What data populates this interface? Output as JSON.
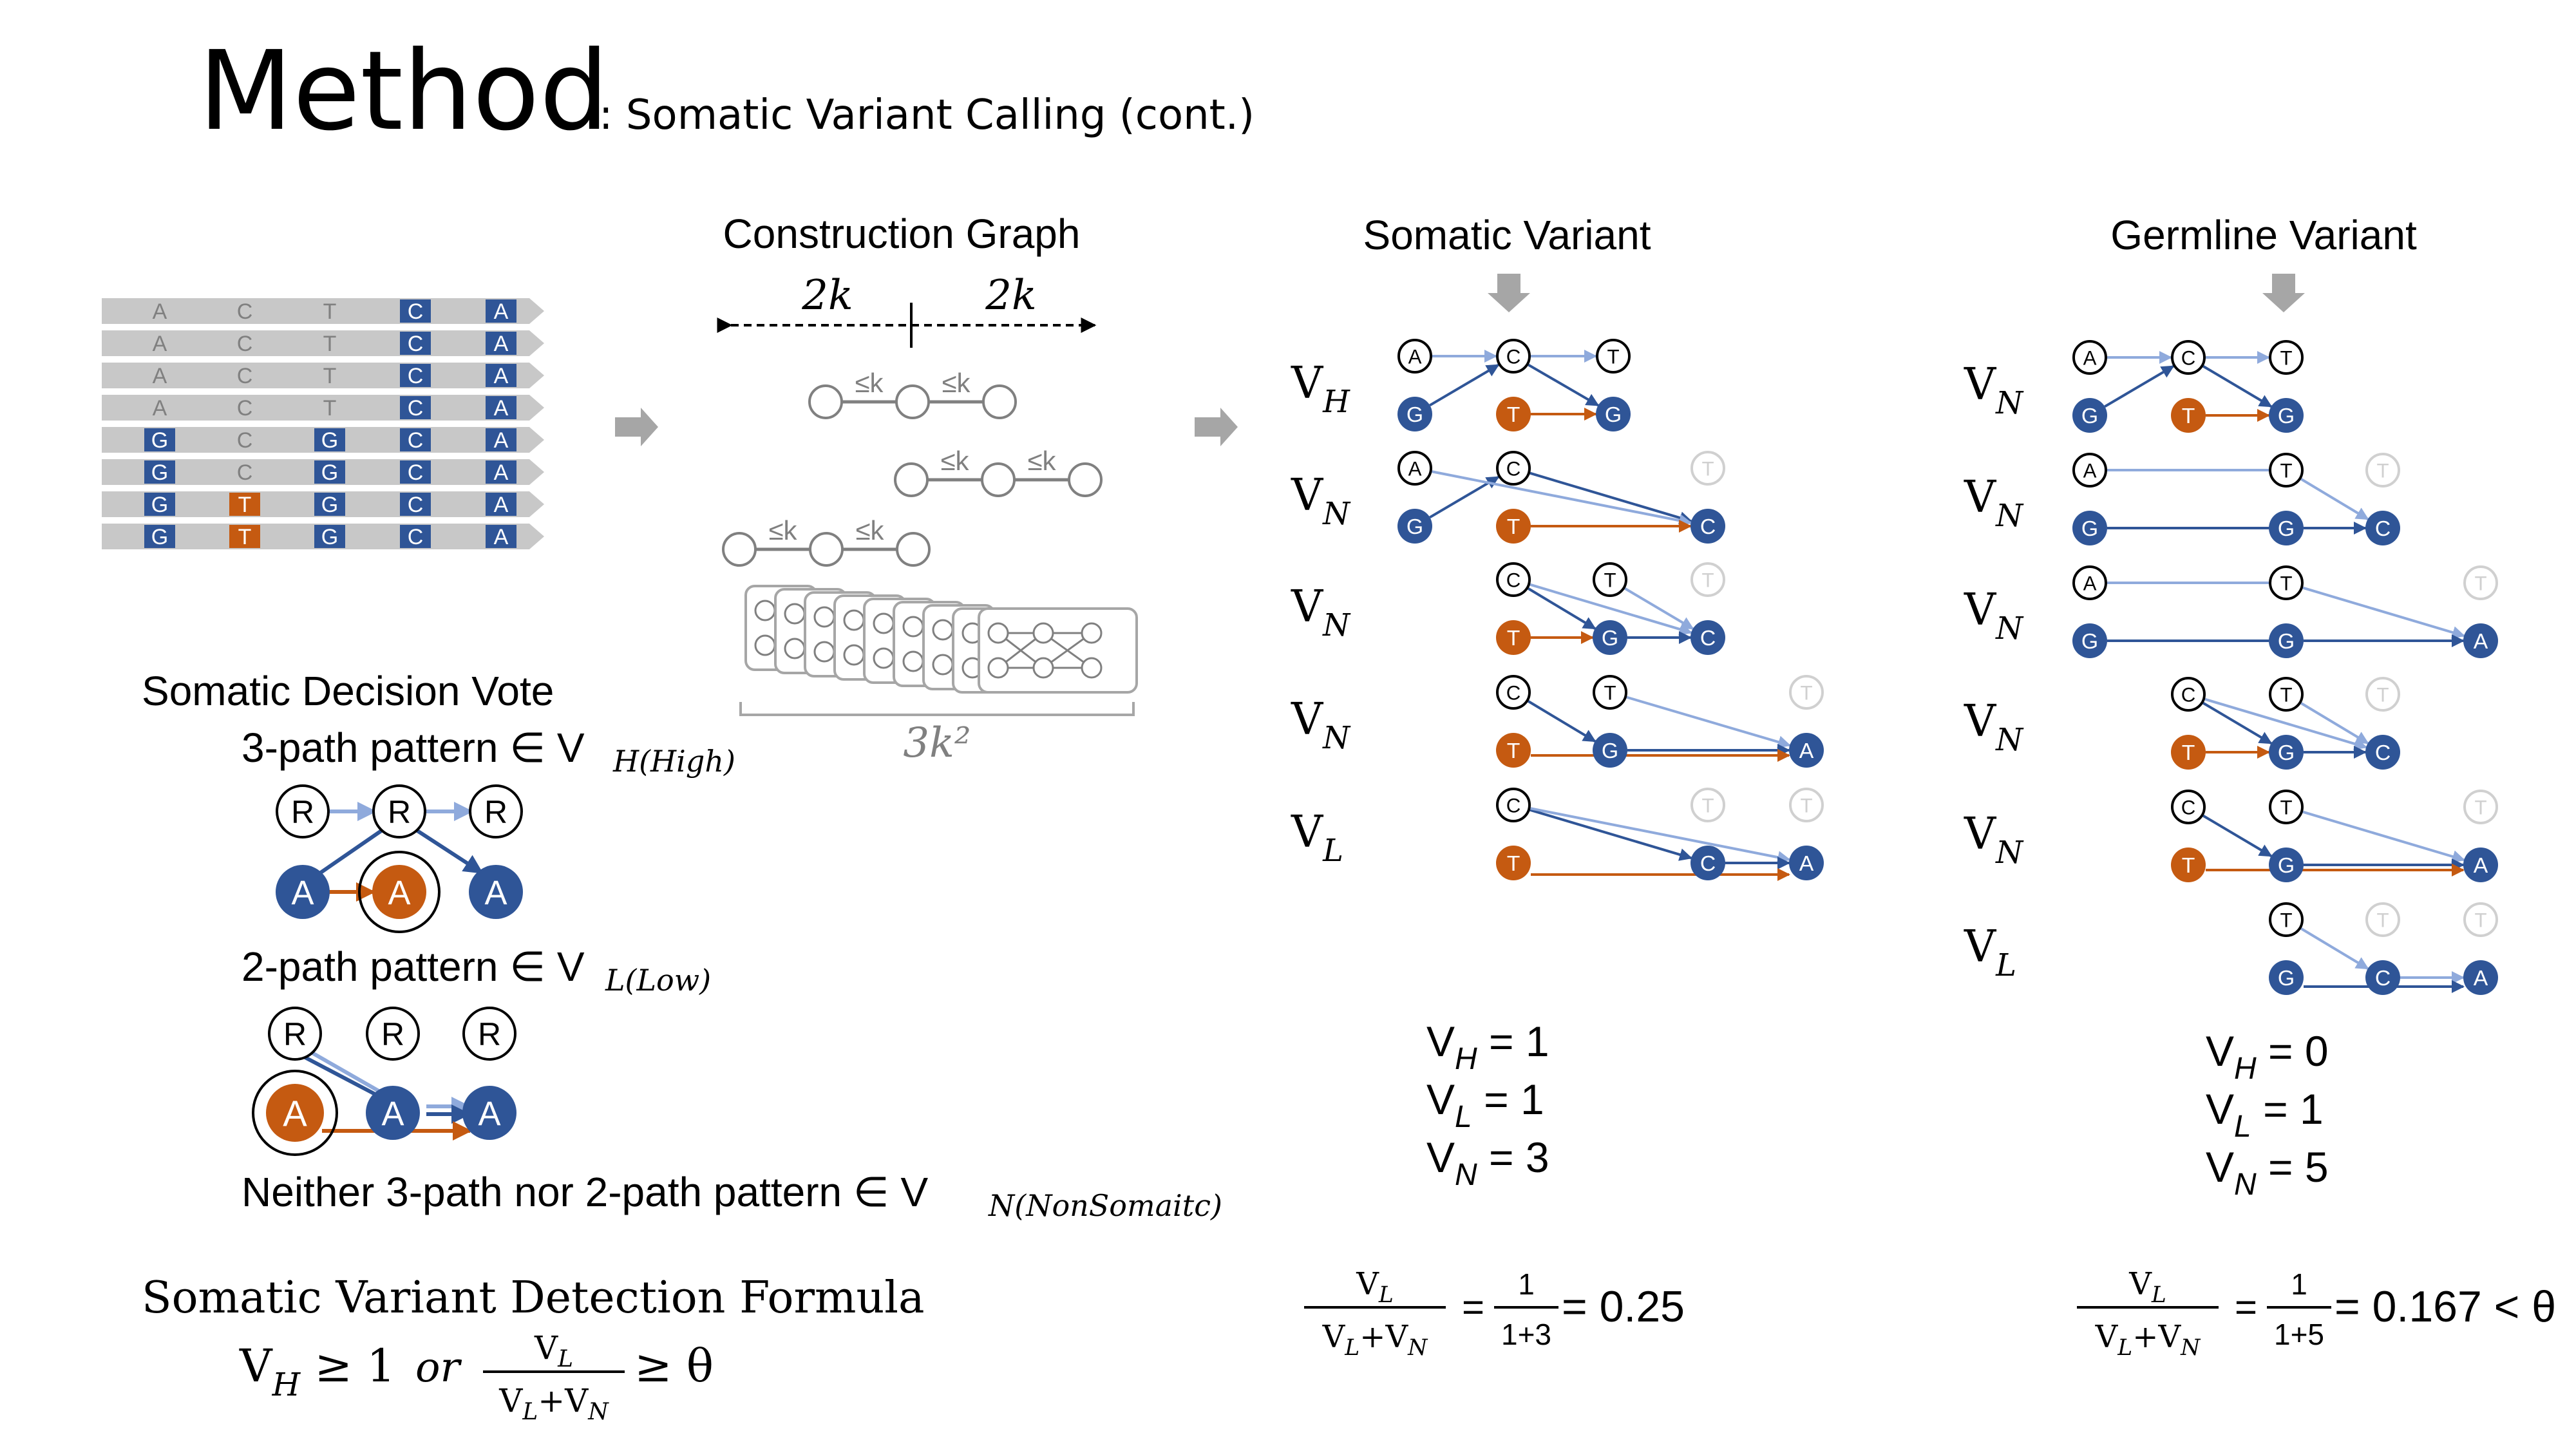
{
  "title": {
    "main": "Method",
    "subtitle": ": Somatic Variant Calling (cont.)"
  },
  "colors": {
    "blue": "#2f5597",
    "orange": "#c55a11",
    "light_blue": "#8faadc",
    "gray": "#a6a6a6",
    "read_bg": "#c8c8c8",
    "faded": "#d0d0d0"
  },
  "reads": [
    [
      "A",
      "C",
      "T",
      "C",
      "A"
    ],
    [
      "A",
      "C",
      "T",
      "C",
      "A"
    ],
    [
      "A",
      "C",
      "T",
      "C",
      "A"
    ],
    [
      "A",
      "C",
      "T",
      "C",
      "A"
    ],
    [
      "G",
      "C",
      "G",
      "C",
      "A"
    ],
    [
      "G",
      "C",
      "G",
      "C",
      "A"
    ],
    [
      "G",
      "T",
      "G",
      "C",
      "A"
    ],
    [
      "G",
      "T",
      "G",
      "C",
      "A"
    ]
  ],
  "construction": {
    "title": "Construction Graph",
    "left_span": "2k",
    "right_span": "2k",
    "edge_label": "≤k",
    "total": "3k²"
  },
  "somatic_panel": {
    "title": "Somatic Variant",
    "rows": [
      {
        "label_v": "V",
        "label_sub": "H",
        "top": [
          "A",
          "C",
          "T"
        ],
        "bottom": [
          "G",
          "T",
          "G"
        ]
      },
      {
        "label_v": "V",
        "label_sub": "N",
        "top": [
          "A",
          "C",
          "T"
        ],
        "bottom": [
          "G",
          "T",
          "C"
        ]
      },
      {
        "label_v": "V",
        "label_sub": "N",
        "top": [
          "C",
          "T",
          "T"
        ],
        "bottom": [
          "T",
          "G",
          "C"
        ]
      },
      {
        "label_v": "V",
        "label_sub": "N",
        "top": [
          "C",
          "T",
          "T"
        ],
        "bottom": [
          "T",
          "G",
          "A"
        ]
      },
      {
        "label_v": "V",
        "label_sub": "L",
        "top": [
          "C",
          "T",
          "T"
        ],
        "bottom": [
          "T",
          "C",
          "A"
        ]
      }
    ],
    "counts": [
      {
        "name": "V",
        "sub": "H",
        "value": "= 1"
      },
      {
        "name": "V",
        "sub": "L",
        "value": "= 1"
      },
      {
        "name": "V",
        "sub": "N",
        "value": "= 3"
      }
    ],
    "ratio": {
      "num": "VL",
      "den": "VL+VN",
      "num2": "1",
      "den2": "1+3",
      "result": "= 0.25"
    }
  },
  "germline_panel": {
    "title": "Germline Variant",
    "rows": [
      {
        "label_v": "V",
        "label_sub": "N",
        "top": [
          "A",
          "C",
          "T"
        ],
        "bottom": [
          "G",
          "T",
          "G"
        ]
      },
      {
        "label_v": "V",
        "label_sub": "N",
        "top": [
          "A",
          "T",
          "T"
        ],
        "bottom": [
          "G",
          "G",
          "C"
        ]
      },
      {
        "label_v": "V",
        "label_sub": "N",
        "top": [
          "A",
          "T",
          "T"
        ],
        "bottom": [
          "G",
          "G",
          "A"
        ]
      },
      {
        "label_v": "V",
        "label_sub": "N",
        "top": [
          "C",
          "T",
          "T"
        ],
        "bottom": [
          "T",
          "G",
          "C"
        ]
      },
      {
        "label_v": "V",
        "label_sub": "N",
        "top": [
          "C",
          "T",
          "T"
        ],
        "bottom": [
          "T",
          "G",
          "A"
        ]
      },
      {
        "label_v": "V",
        "label_sub": "L",
        "top": [
          "T",
          "T",
          "T"
        ],
        "bottom": [
          "G",
          "C",
          "A"
        ]
      }
    ],
    "counts": [
      {
        "name": "V",
        "sub": "H",
        "value": "= 0"
      },
      {
        "name": "V",
        "sub": "L",
        "value": "= 1"
      },
      {
        "name": "V",
        "sub": "N",
        "value": "= 5"
      }
    ],
    "ratio": {
      "num": "VL",
      "den": "VL+VN",
      "num2": "1",
      "den2": "1+5",
      "result": "= 0.167 < θ"
    }
  },
  "decision": {
    "title": "Somatic Decision Vote",
    "three_path": {
      "text": "3-path pattern ∈ V",
      "sub": "H(High)",
      "top": [
        "R",
        "R",
        "R"
      ],
      "bottom": [
        "A",
        "A",
        "A"
      ]
    },
    "two_path": {
      "text": "2-path pattern ∈ V",
      "sub": "L(Low)",
      "top": [
        "R",
        "R",
        "R"
      ],
      "bottom": [
        "A",
        "A",
        "A"
      ]
    },
    "neither": {
      "text": "Neither 3-path nor 2-path pattern ∈ V",
      "sub": "N(NonSomaitc)"
    }
  },
  "formula": {
    "title": "Somatic Variant Detection Formula",
    "lhs": "VH ≥ 1",
    "or": "or",
    "num": "VL",
    "den": "VL+VN",
    "rhs": "≥ θ"
  }
}
